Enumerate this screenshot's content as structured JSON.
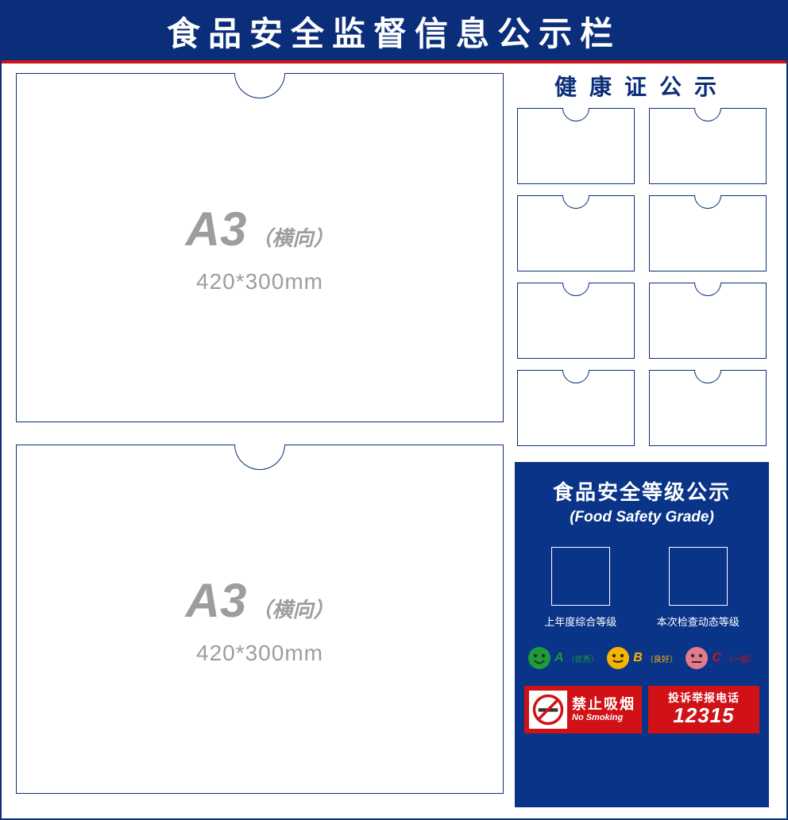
{
  "colors": {
    "primary_blue": "#0b2e7a",
    "panel_blue": "#0a3488",
    "red": "#d01217",
    "white": "#ffffff",
    "gray_text": "#9d9d9d",
    "green": "#1e9b3a",
    "amber": "#f5b400"
  },
  "header": {
    "title": "食品安全监督信息公示栏",
    "fontsize": 42,
    "letter_spacing": 10
  },
  "a3_pockets": [
    {
      "label": "A3",
      "orientation": "（横向）",
      "size": "420*300mm"
    },
    {
      "label": "A3",
      "orientation": "（横向）",
      "size": "420*300mm"
    }
  ],
  "health_cert": {
    "title": "健康证公示",
    "card_count": 8,
    "grid": {
      "cols": 2,
      "rows": 4
    }
  },
  "grade_panel": {
    "title_cn": "食品安全等级公示",
    "title_en": "(Food Safety Grade)",
    "boxes": [
      {
        "label": "上年度综合等级"
      },
      {
        "label": "本次检查动态等级"
      }
    ],
    "legend": [
      {
        "letter": "A",
        "desc": "（优秀）",
        "face_color": "#1e9b3a",
        "mood": "smile",
        "letter_class": "letter-a"
      },
      {
        "letter": "B",
        "desc": "（良好）",
        "face_color": "#f5b400",
        "mood": "neutral",
        "letter_class": "letter-b"
      },
      {
        "letter": "C",
        "desc": "（一般）",
        "face_color": "#e47a8a",
        "mood": "flat",
        "letter_class": "letter-c"
      }
    ]
  },
  "no_smoking": {
    "cn": "禁止吸烟",
    "en": "No Smoking"
  },
  "hotline": {
    "label": "投诉举报电话",
    "number": "12315"
  }
}
